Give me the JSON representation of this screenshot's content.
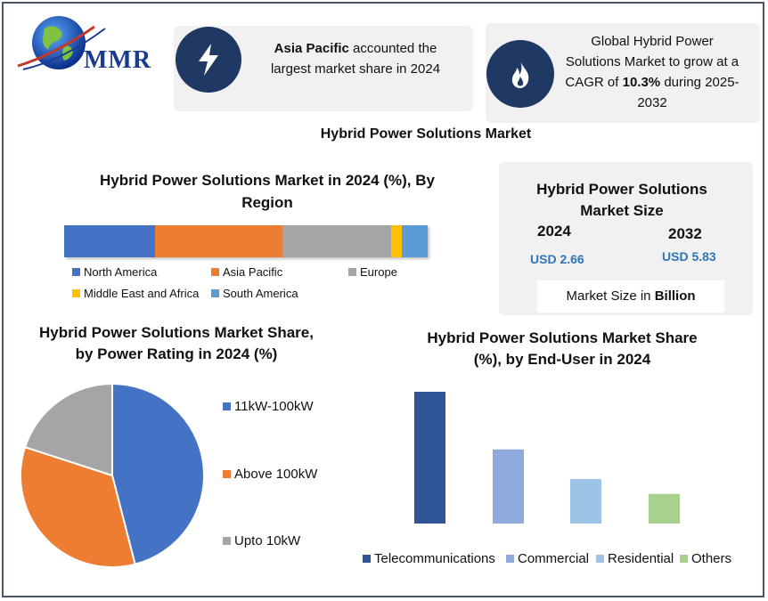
{
  "logo": {
    "text": "MMR"
  },
  "callout_asia": {
    "bold": "Asia Pacific",
    "rest": " accounted the largest market share in 2024"
  },
  "callout_cagr": {
    "line1": "Global Hybrid Power Solutions Market to grow at a CAGR of ",
    "bold": "10.3%",
    "line2": " during 2025-2032"
  },
  "main_title": "Hybrid Power Solutions Market",
  "market_size": {
    "title": "Hybrid Power Solutions Market Size",
    "year1": "2024",
    "value1": "USD 2.66",
    "year2": "2032",
    "value2": "USD 5.83",
    "unit_prefix": "Market Size in ",
    "unit_bold": "Billion"
  },
  "chart_data": [
    {
      "type": "bar",
      "orientation": "horizontal-stacked",
      "title": "Hybrid Power Solutions Market in 2024 (%), By Region",
      "categories": [
        "North America",
        "Asia Pacific",
        "Europe",
        "Middle East and Africa",
        "South America"
      ],
      "values": [
        25,
        35,
        30,
        3,
        7
      ],
      "colors": [
        "#4472c4",
        "#ed7d31",
        "#a5a5a5",
        "#ffc000",
        "#5b9bd5"
      ],
      "legend": "bottom"
    },
    {
      "type": "pie",
      "title": "Hybrid Power Solutions Market Share, by Power Rating in 2024 (%)",
      "categories": [
        "11kW-100kW",
        "Above 100kW",
        "Upto 10kW"
      ],
      "values": [
        46,
        34,
        20
      ],
      "colors": [
        "#4472c4",
        "#ed7d31",
        "#a5a5a5"
      ],
      "legend": "right"
    },
    {
      "type": "bar",
      "title": "Hybrid Power Solutions Market Share (%), by End-User in 2024",
      "categories": [
        "Telecommunications",
        "Commercial",
        "Residential",
        "Others"
      ],
      "values": [
        40,
        22.5,
        13.5,
        9
      ],
      "ylim": [
        0,
        40
      ],
      "colors": [
        "#2f5597",
        "#8faadc",
        "#9dc3e6",
        "#a9d18e"
      ],
      "legend": "bottom"
    }
  ]
}
